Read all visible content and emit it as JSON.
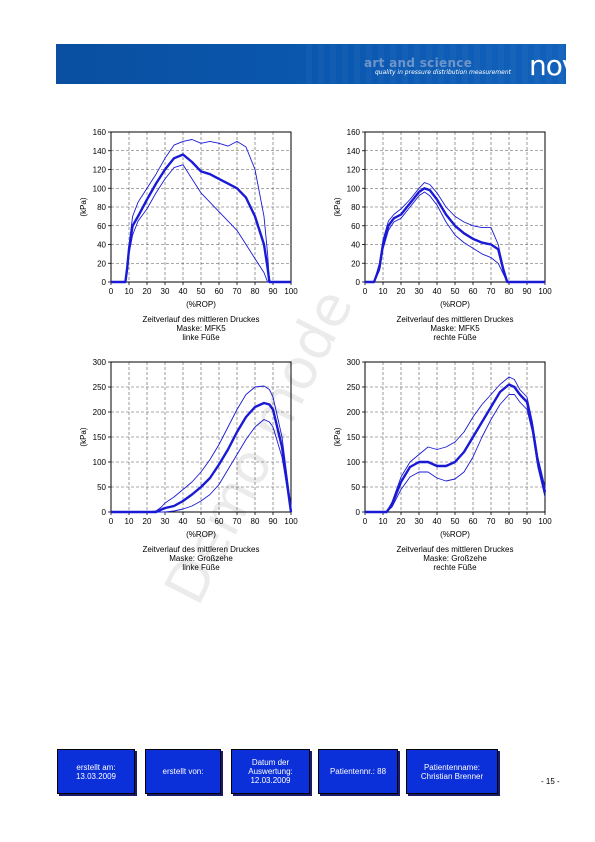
{
  "header": {
    "tagline_title": "art and science",
    "tagline_sub": "quality in pressure distribution measurement",
    "logo_text": "novel"
  },
  "watermark": "Demo mode",
  "colors": {
    "banner": "#0a58b0",
    "series": "#1a1ad6",
    "footer": "#0b2fd8"
  },
  "chart_data": [
    {
      "type": "line",
      "title": "Zeitverlauf des mittleren Druckes",
      "caption": [
        "Zeitverlauf des mittleren Druckes",
        "Maske: MFK5",
        "linke Füße"
      ],
      "xlabel": "(%ROP)",
      "ylabel": "(kPa)",
      "xlim": [
        0,
        100
      ],
      "ylim": [
        0,
        160
      ],
      "xticks": [
        0,
        10,
        20,
        30,
        40,
        50,
        60,
        70,
        80,
        90,
        100
      ],
      "yticks": [
        0,
        20,
        40,
        60,
        80,
        100,
        120,
        140,
        160
      ],
      "grid": true,
      "x": [
        0,
        8,
        9,
        10,
        12,
        15,
        20,
        25,
        30,
        35,
        40,
        45,
        50,
        55,
        60,
        65,
        70,
        75,
        80,
        85,
        87,
        88,
        90,
        100
      ],
      "series": [
        {
          "role": "upper",
          "values": [
            0,
            0,
            20,
            40,
            70,
            85,
            100,
            115,
            132,
            146,
            150,
            152,
            148,
            150,
            148,
            145,
            150,
            144,
            120,
            70,
            30,
            0,
            0,
            0
          ]
        },
        {
          "role": "mean",
          "values": [
            0,
            0,
            15,
            35,
            60,
            70,
            88,
            105,
            120,
            132,
            136,
            128,
            118,
            115,
            110,
            105,
            100,
            90,
            70,
            40,
            15,
            0,
            0,
            0
          ]
        },
        {
          "role": "lower",
          "values": [
            0,
            0,
            10,
            30,
            50,
            65,
            78,
            95,
            110,
            122,
            125,
            110,
            95,
            85,
            75,
            65,
            55,
            40,
            25,
            10,
            0,
            0,
            0,
            0
          ]
        }
      ]
    },
    {
      "type": "line",
      "title": "Zeitverlauf des mittleren Druckes",
      "caption": [
        "Zeitverlauf des mittleren Druckes",
        "Maske: MFK5",
        "rechte Füße"
      ],
      "xlabel": "(%ROP)",
      "ylabel": "(kPa)",
      "xlim": [
        0,
        100
      ],
      "ylim": [
        0,
        160
      ],
      "xticks": [
        0,
        10,
        20,
        30,
        40,
        50,
        60,
        70,
        80,
        90,
        100
      ],
      "yticks": [
        0,
        20,
        40,
        60,
        80,
        100,
        120,
        140,
        160
      ],
      "grid": true,
      "x": [
        0,
        5,
        8,
        10,
        13,
        16,
        20,
        25,
        30,
        33,
        36,
        40,
        45,
        50,
        55,
        60,
        65,
        70,
        74,
        77,
        79,
        80,
        100
      ],
      "series": [
        {
          "role": "upper",
          "values": [
            0,
            0,
            20,
            45,
            65,
            72,
            78,
            88,
            100,
            106,
            104,
            95,
            80,
            70,
            64,
            60,
            58,
            58,
            40,
            15,
            2,
            0,
            0
          ]
        },
        {
          "role": "mean",
          "values": [
            0,
            0,
            15,
            40,
            60,
            68,
            72,
            84,
            96,
            100,
            98,
            88,
            72,
            60,
            52,
            46,
            42,
            40,
            35,
            12,
            0,
            0,
            0
          ]
        },
        {
          "role": "lower",
          "values": [
            0,
            0,
            12,
            35,
            55,
            64,
            68,
            80,
            92,
            96,
            92,
            82,
            64,
            50,
            42,
            36,
            30,
            26,
            20,
            8,
            0,
            0,
            0
          ]
        }
      ]
    },
    {
      "type": "line",
      "title": "Zeitverlauf des mittleren Druckes",
      "caption": [
        "Zeitverlauf des mittleren Druckes",
        "Maske: Großzehe",
        "linke Füße"
      ],
      "xlabel": "(%ROP)",
      "ylabel": "(kPa)",
      "xlim": [
        0,
        100
      ],
      "ylim": [
        0,
        300
      ],
      "xticks": [
        0,
        10,
        20,
        30,
        40,
        50,
        60,
        70,
        80,
        90,
        100
      ],
      "yticks": [
        0,
        50,
        100,
        150,
        200,
        250,
        300
      ],
      "grid": true,
      "x": [
        0,
        20,
        25,
        28,
        30,
        35,
        40,
        45,
        50,
        55,
        60,
        65,
        70,
        75,
        80,
        85,
        88,
        90,
        95,
        100
      ],
      "series": [
        {
          "role": "upper",
          "values": [
            0,
            0,
            2,
            10,
            18,
            30,
            45,
            60,
            80,
            105,
            135,
            170,
            205,
            235,
            250,
            252,
            245,
            230,
            150,
            10
          ]
        },
        {
          "role": "mean",
          "values": [
            0,
            0,
            0,
            5,
            8,
            12,
            22,
            35,
            50,
            68,
            95,
            125,
            160,
            190,
            210,
            218,
            215,
            205,
            130,
            0
          ]
        },
        {
          "role": "lower",
          "values": [
            0,
            0,
            0,
            0,
            0,
            2,
            6,
            12,
            22,
            35,
            55,
            85,
            115,
            145,
            170,
            185,
            180,
            170,
            110,
            0
          ]
        }
      ]
    },
    {
      "type": "line",
      "title": "Zeitverlauf des mittleren Druckes",
      "caption": [
        "Zeitverlauf des mittleren Druckes",
        "Maske: Großzehe",
        "rechte Füße"
      ],
      "xlabel": "(%ROP)",
      "ylabel": "(kPa)",
      "xlim": [
        0,
        100
      ],
      "ylim": [
        0,
        300
      ],
      "xticks": [
        0,
        10,
        20,
        30,
        40,
        50,
        60,
        70,
        80,
        90,
        100
      ],
      "yticks": [
        0,
        50,
        100,
        150,
        200,
        250,
        300
      ],
      "grid": true,
      "x": [
        0,
        12,
        15,
        20,
        25,
        30,
        35,
        40,
        45,
        50,
        55,
        60,
        65,
        70,
        75,
        80,
        83,
        86,
        90,
        93,
        96,
        100
      ],
      "series": [
        {
          "role": "upper",
          "values": [
            0,
            0,
            20,
            70,
            100,
            115,
            130,
            125,
            130,
            140,
            160,
            190,
            215,
            235,
            255,
            270,
            265,
            245,
            230,
            180,
            110,
            50
          ]
        },
        {
          "role": "mean",
          "values": [
            0,
            0,
            15,
            60,
            90,
            100,
            100,
            92,
            92,
            100,
            120,
            150,
            180,
            210,
            240,
            255,
            250,
            235,
            220,
            170,
            100,
            40
          ]
        },
        {
          "role": "lower",
          "values": [
            0,
            0,
            10,
            45,
            70,
            80,
            80,
            68,
            62,
            66,
            80,
            110,
            150,
            185,
            215,
            235,
            235,
            220,
            205,
            160,
            90,
            30
          ]
        }
      ]
    }
  ],
  "footer": {
    "created_on_label": "erstellt am:",
    "created_on_value": "13.03.2009",
    "created_by_label": "erstellt von:",
    "analysis_date_label_1": "Datum der",
    "analysis_date_label_2": "Auswertung:",
    "analysis_date_value": "12.03.2009",
    "patient_number": "Patientennr.: 88",
    "patient_name_label": "Patientenname:",
    "patient_name_value": "Christian Brenner",
    "page_number": "- 15 -"
  }
}
